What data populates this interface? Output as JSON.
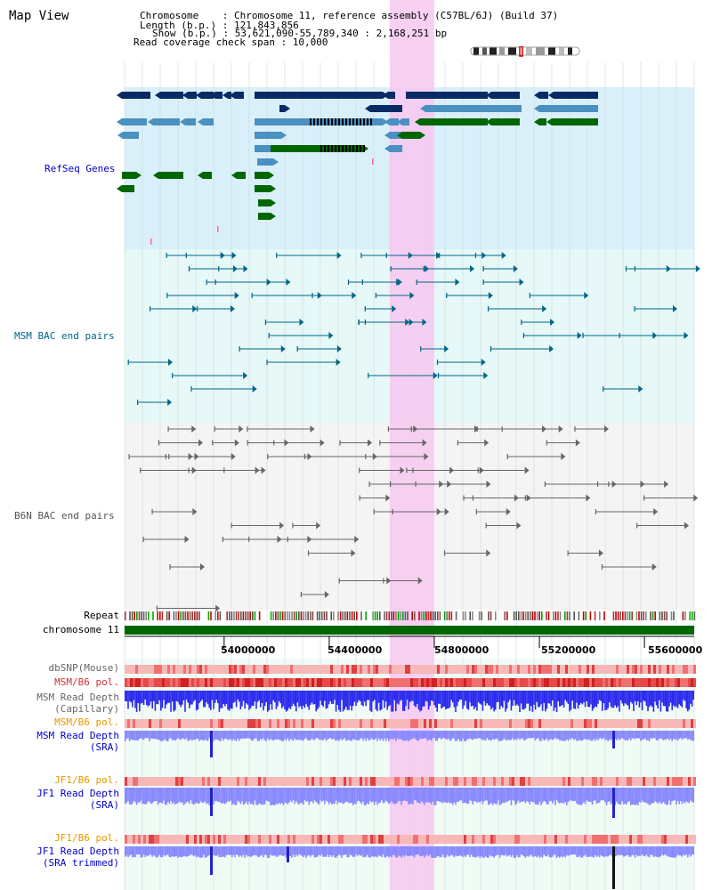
{
  "header": {
    "title": "Map View",
    "info_lines": [
      "Chromosome    : Chromosome 11, reference assembly (C57BL/6J) (Build 37)",
      "Length (b.p.) : 121,843,856",
      "Show (b.p.) : 53,621,090-55,789,340 : 2,168,251 bp",
      "Read coverage check span : 10,000"
    ]
  },
  "tracks": {
    "refseq": "RefSeq Genes",
    "msm_bac": "MSM BAC end pairs",
    "b6n_bac": "B6N BAC end pairs",
    "repeat": "Repeat",
    "chromosome": "chromosome 11",
    "dbsnp": "dbSNP(Mouse)",
    "msm_b6_pol_1": "MSM/B6 pol.",
    "msm_depth_cap_1": "MSM Read Depth",
    "msm_depth_cap_2": "(Capillary)",
    "msm_b6_pol_2": "MSM/B6 pol.",
    "msm_depth_sra_1": "MSM Read Depth",
    "msm_depth_sra_2": "(SRA)",
    "jf1_b6_pol_1": "JF1/B6 pol.",
    "jf1_depth_sra_1": "JF1 Read Depth",
    "jf1_depth_sra_2": "(SRA)",
    "jf1_b6_pol_2": "JF1/B6 pol.",
    "jf1_depth_trim_1": "JF1 Read Depth",
    "jf1_depth_trim_2": "(SRA trimmed)"
  },
  "axis": {
    "ticks": [
      "54000000",
      "54400000",
      "54800000",
      "55200000",
      "55600000"
    ],
    "tick_values": [
      54000000,
      54400000,
      54800000,
      55200000,
      55600000
    ],
    "range": [
      53621090,
      55789340
    ]
  },
  "highlight": {
    "start": 54630000,
    "end": 54800000
  },
  "colors": {
    "refseq_bg": "#d9f0fa",
    "refseq_label": "#0000cc",
    "gene_dark": "#0a2a66",
    "gene_mid": "#4a90c0",
    "gene_green": "#006600",
    "msm_bac": "#006688",
    "b6n_bac": "#666666",
    "highlight": "#f7c8f0",
    "chromosome_bar": "#006600",
    "dbsnp_label": "#666666",
    "msm_label": "#cc3333",
    "jf1_label": "#e69900",
    "depth_label": "#0000cc",
    "capillary_label": "#666666"
  }
}
